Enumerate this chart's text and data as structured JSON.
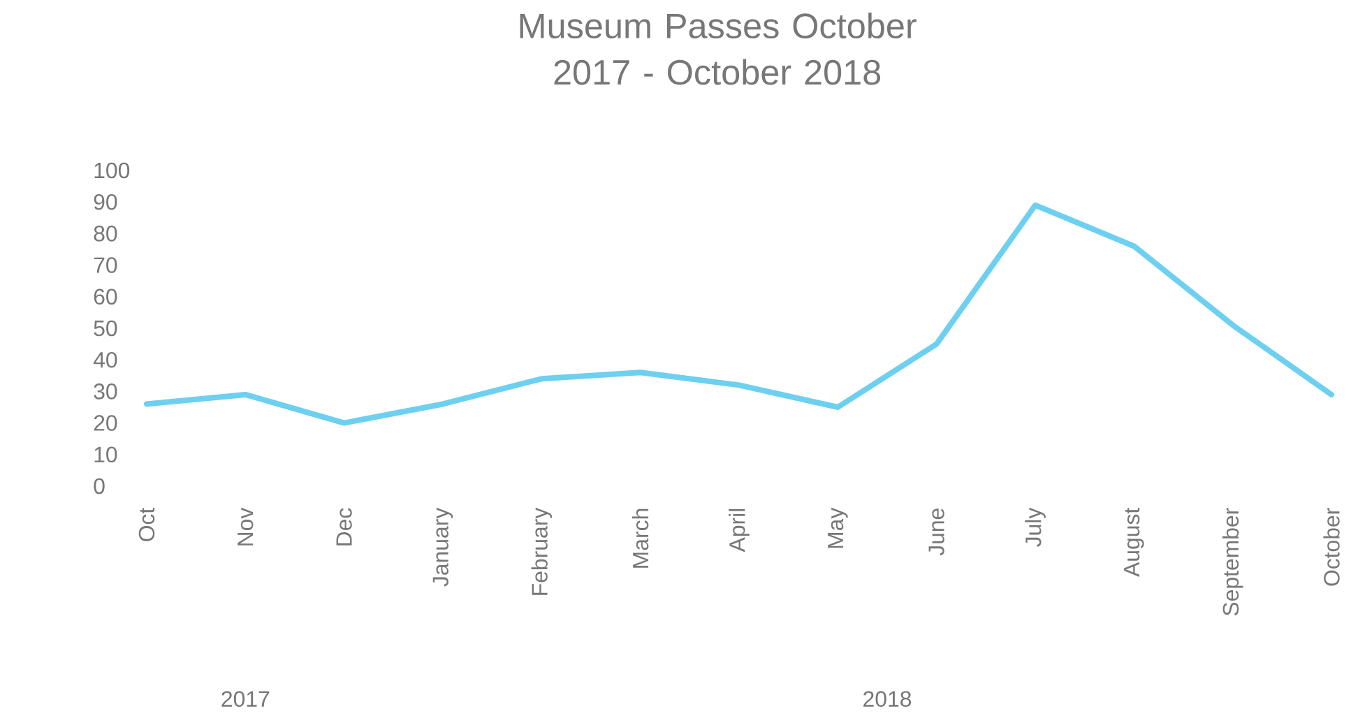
{
  "chart_data": {
    "type": "line",
    "title": "Museum Passes October 2017 - October 2018",
    "categories": [
      "Oct",
      "Nov",
      "Dec",
      "January",
      "February",
      "March",
      "April",
      "May",
      "June",
      "July",
      "August",
      "September",
      "October"
    ],
    "series": [
      {
        "color": "#6dd0f0",
        "values": [
          26,
          29,
          20,
          26,
          34,
          36,
          32,
          25,
          45,
          89,
          76,
          51,
          29
        ]
      }
    ],
    "ylim": [
      0,
      100
    ],
    "yticks": [
      0,
      10,
      20,
      30,
      40,
      50,
      60,
      70,
      80,
      90,
      100
    ],
    "annotations": [
      "2017",
      "2018"
    ],
    "grid": false,
    "marker": "none",
    "line_style": "solid"
  }
}
